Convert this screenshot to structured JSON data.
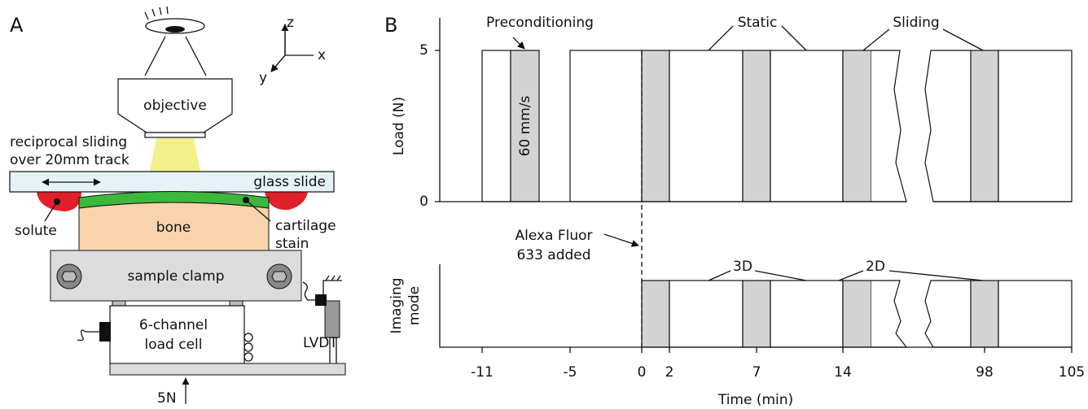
{
  "panel_a": {
    "label": "A",
    "axes": {
      "z": "z",
      "x": "x",
      "y": "y"
    },
    "objective": "objective",
    "sliding": [
      "reciprocal sliding",
      "over 20mm track"
    ],
    "glass_slide": "glass slide",
    "solute": "solute",
    "bone": "bone",
    "cartilage": [
      "cartilage",
      "stain"
    ],
    "sample_clamp": "sample clamp",
    "load_cell": [
      "6-channel",
      "load cell"
    ],
    "lvdt": "LVDT",
    "force": "5N"
  },
  "panel_b": {
    "label": "B",
    "load_axis": {
      "title": "Load (N)",
      "ticks": [
        5,
        0
      ]
    },
    "imaging_axis": {
      "title": [
        "Imaging",
        "mode"
      ]
    },
    "x_axis": {
      "title": "Time (min)",
      "ticks": [
        -11,
        -5,
        0,
        2,
        7,
        14,
        98,
        105
      ]
    },
    "annotations": {
      "preconditioning": "Preconditioning",
      "speed": "60 mm/s",
      "static": "Static",
      "sliding": "Sliding",
      "stain": [
        "Alexa Fluor",
        "633 added"
      ],
      "mode_3d": "3D",
      "mode_2d": "2D"
    }
  }
}
